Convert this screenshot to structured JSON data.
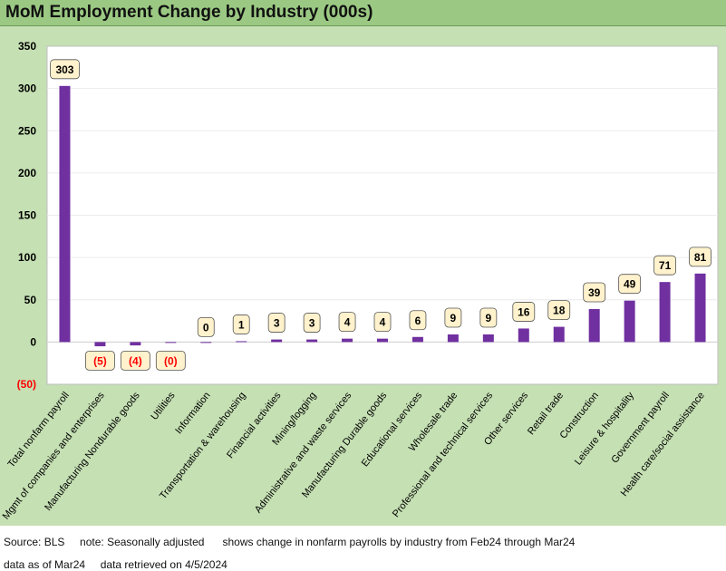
{
  "chart_data": {
    "type": "bar",
    "title": "MoM Employment Change by Industry (000s)",
    "categories": [
      "Total nonfarm payroll",
      "Mgmt of companies and enterprises",
      "Manufacturing Nondurable goods",
      "Utilities",
      "Information",
      "Transportation & warehousing",
      "Financial activities",
      "Mining/logging",
      "Administrative and waste services",
      "Manufacturing Durable goods",
      "Educational services",
      "Wholesale trade",
      "Professional and technical services",
      "Other services",
      "Retail trade",
      "Construction",
      "Leisure & hospitality",
      "Government payroll",
      "Health care/social assistance"
    ],
    "values": [
      303,
      -5,
      -4,
      -0.3,
      0,
      1,
      3,
      3,
      4,
      4,
      6,
      9,
      9,
      16,
      18,
      39,
      49,
      71,
      81
    ],
    "data_labels": [
      "303",
      "(5)",
      "(4)",
      "(0)",
      "0",
      "1",
      "3",
      "3",
      "4",
      "4",
      "6",
      "9",
      "9",
      "16",
      "18",
      "39",
      "49",
      "71",
      "81"
    ],
    "ylim": [
      -50,
      350
    ],
    "yticks": [
      -50,
      0,
      50,
      100,
      150,
      200,
      250,
      300,
      350
    ],
    "ytick_labels": [
      "(50)",
      "0",
      "50",
      "100",
      "150",
      "200",
      "250",
      "300",
      "350"
    ],
    "xlabel": "",
    "ylabel": "",
    "grid": true,
    "colors": {
      "bar": "#7030a0",
      "label_fill": "#fff2cc",
      "negative_text": "#ff0000",
      "positive_text": "#000000",
      "background": "#c5e0b3",
      "title_bar": "#9bc983"
    }
  },
  "footer": {
    "line1": "Source: BLS     note: Seasonally adjusted      shows change in nonfarm payrolls by industry from Feb24 through Mar24",
    "line2": "data as of Mar24     data retrieved on 4/5/2024"
  }
}
